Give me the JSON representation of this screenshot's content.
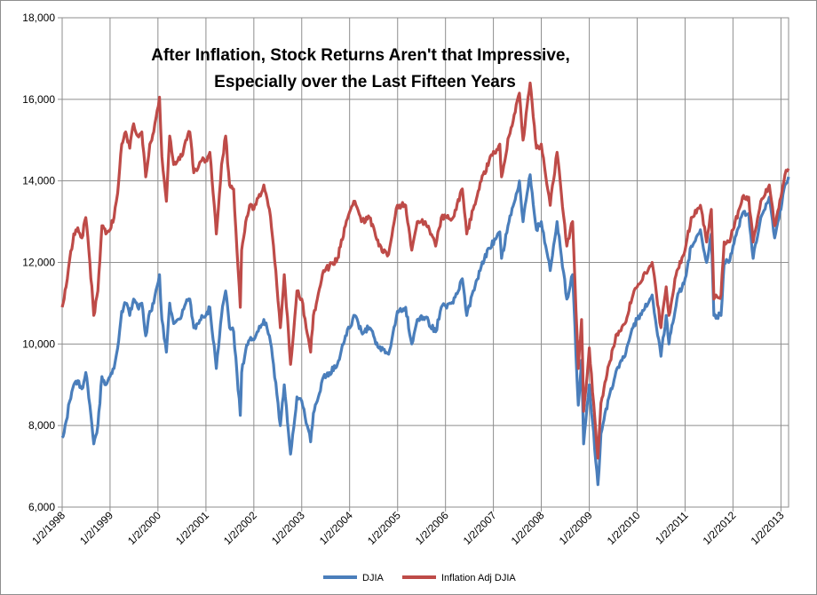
{
  "chart_data": {
    "type": "line",
    "title_lines": [
      "After Inflation, Stock Returns Aren't that Impressive,",
      "Especially over the Last Fifteen Years"
    ],
    "xlabel": "",
    "ylabel": "",
    "ylim": [
      6000,
      18000
    ],
    "y_ticks": [
      "6,000",
      "8,000",
      "10,000",
      "12,000",
      "14,000",
      "16,000",
      "18,000"
    ],
    "x_ticks": [
      "1/2/1998",
      "1/2/1999",
      "1/2/2000",
      "1/2/2001",
      "1/2/2002",
      "1/2/2003",
      "1/2/2004",
      "1/2/2005",
      "1/2/2006",
      "1/2/2007",
      "1/2/2008",
      "1/2/2009",
      "1/2/2010",
      "1/2/2011",
      "1/2/2012",
      "1/2/2013"
    ],
    "xlim": [
      "1/2/1998",
      "3/1/2013"
    ],
    "grid": true,
    "legend_position": "bottom",
    "series": [
      {
        "name": "DJIA",
        "color": "#4a7ebb",
        "x": [
          "1/2/1998",
          "2/1/1998",
          "3/1/1998",
          "4/1/1998",
          "5/1/1998",
          "6/1/1998",
          "7/1/1998",
          "8/1/1998",
          "8/31/1998",
          "10/1/1998",
          "11/1/1998",
          "12/1/1998",
          "1/2/1999",
          "2/1/1999",
          "3/1/1999",
          "4/1/1999",
          "5/1/1999",
          "6/1/1999",
          "7/1/1999",
          "8/1/1999",
          "9/1/1999",
          "10/1/1999",
          "11/1/1999",
          "12/1/1999",
          "1/14/2000",
          "2/1/2000",
          "3/7/2000",
          "4/1/2000",
          "5/1/2000",
          "6/1/2000",
          "7/1/2000",
          "8/1/2000",
          "9/1/2000",
          "10/1/2000",
          "11/1/2000",
          "12/1/2000",
          "1/2/2001",
          "2/1/2001",
          "3/22/2001",
          "5/1/2001",
          "6/1/2001",
          "7/1/2001",
          "8/1/2001",
          "9/21/2001",
          "10/1/2001",
          "11/1/2001",
          "12/1/2001",
          "1/2/2002",
          "3/19/2002",
          "5/1/2002",
          "6/1/2002",
          "7/23/2002",
          "8/22/2002",
          "10/9/2002",
          "11/27/2002",
          "1/2/2003",
          "3/11/2003",
          "4/1/2003",
          "5/1/2003",
          "6/17/2003",
          "8/1/2003",
          "10/1/2003",
          "12/1/2003",
          "2/11/2004",
          "4/1/2004",
          "6/1/2004",
          "8/12/2004",
          "10/25/2004",
          "12/31/2004",
          "3/4/2005",
          "4/20/2005",
          "6/1/2005",
          "8/1/2005",
          "10/19/2005",
          "12/1/2005",
          "3/1/2006",
          "5/10/2006",
          "6/13/2006",
          "8/1/2006",
          "10/1/2006",
          "12/1/2006",
          "2/20/2007",
          "3/5/2007",
          "5/1/2007",
          "7/19/2007",
          "8/16/2007",
          "10/9/2007",
          "11/26/2007",
          "1/2/2008",
          "3/10/2008",
          "5/1/2008",
          "7/15/2008",
          "8/28/2008",
          "10/10/2008",
          "11/4/2008",
          "11/20/2008",
          "1/2/2009",
          "3/9/2009",
          "4/1/2009",
          "6/1/2009",
          "8/1/2009",
          "10/1/2009",
          "12/1/2009",
          "1/2/2010",
          "4/26/2010",
          "7/2/2010",
          "8/11/2010",
          "9/1/2010",
          "11/1/2010",
          "1/2/2011",
          "2/18/2011",
          "4/29/2011",
          "6/15/2011",
          "7/21/2011",
          "8/10/2011",
          "10/3/2011",
          "10/27/2011",
          "12/1/2011",
          "1/2/2012",
          "3/15/2012",
          "5/1/2012",
          "6/4/2012",
          "8/1/2012",
          "10/5/2012",
          "11/15/2012",
          "1/2/2013",
          "2/1/2013",
          "3/1/2013"
        ],
        "values": [
          7700,
          8100,
          8600,
          9000,
          9100,
          8900,
          9300,
          8500,
          7550,
          8000,
          9200,
          9000,
          9200,
          9400,
          9900,
          10800,
          11000,
          10700,
          11100,
          10900,
          11000,
          10200,
          10800,
          11000,
          11700,
          10600,
          9800,
          11000,
          10500,
          10600,
          10700,
          11000,
          11100,
          10400,
          10500,
          10700,
          10700,
          10900,
          9400,
          10700,
          11300,
          10400,
          10300,
          8250,
          9300,
          9850,
          10100,
          10100,
          10600,
          10200,
          9500,
          8000,
          9000,
          7300,
          8700,
          8600,
          7600,
          8300,
          8600,
          9200,
          9300,
          9500,
          10200,
          10700,
          10300,
          10400,
          9900,
          9750,
          10800,
          10900,
          10000,
          10600,
          10650,
          10300,
          10900,
          11000,
          11600,
          10700,
          11300,
          11900,
          12350,
          12750,
          12100,
          13000,
          14000,
          13000,
          14150,
          12800,
          13000,
          11800,
          13000,
          11100,
          11700,
          8500,
          9600,
          7550,
          9000,
          6550,
          7800,
          8700,
          9400,
          9700,
          10400,
          10600,
          11200,
          9700,
          10700,
          10000,
          11100,
          11600,
          12400,
          12800,
          12000,
          12700,
          10700,
          10700,
          12000,
          12000,
          12400,
          13200,
          13200,
          12100,
          13100,
          13600,
          12600,
          13300,
          13900,
          14100
        ]
      },
      {
        "name": "Inflation Adj DJIA",
        "color": "#be4b48",
        "x": [
          "1/2/1998",
          "2/1/1998",
          "3/1/1998",
          "4/1/1998",
          "5/1/1998",
          "6/1/1998",
          "7/1/1998",
          "8/1/1998",
          "8/31/1998",
          "10/1/1998",
          "11/1/1998",
          "12/1/1998",
          "1/2/1999",
          "2/1/1999",
          "3/1/1999",
          "4/1/1999",
          "5/1/1999",
          "6/1/1999",
          "7/1/1999",
          "8/1/1999",
          "9/1/1999",
          "10/1/1999",
          "11/1/1999",
          "12/1/1999",
          "1/14/2000",
          "2/1/2000",
          "3/7/2000",
          "4/1/2000",
          "5/1/2000",
          "6/1/2000",
          "7/1/2000",
          "8/1/2000",
          "9/1/2000",
          "10/1/2000",
          "11/1/2000",
          "12/1/2000",
          "1/2/2001",
          "2/1/2001",
          "3/22/2001",
          "5/1/2001",
          "6/1/2001",
          "7/1/2001",
          "8/1/2001",
          "9/21/2001",
          "10/1/2001",
          "11/1/2001",
          "12/1/2001",
          "1/2/2002",
          "3/19/2002",
          "5/1/2002",
          "6/1/2002",
          "7/23/2002",
          "8/22/2002",
          "10/9/2002",
          "11/27/2002",
          "1/2/2003",
          "3/11/2003",
          "4/1/2003",
          "5/1/2003",
          "6/17/2003",
          "8/1/2003",
          "10/1/2003",
          "12/1/2003",
          "2/11/2004",
          "4/1/2004",
          "6/1/2004",
          "8/12/2004",
          "10/25/2004",
          "12/31/2004",
          "3/4/2005",
          "4/20/2005",
          "6/1/2005",
          "8/1/2005",
          "10/19/2005",
          "12/1/2005",
          "3/1/2006",
          "5/10/2006",
          "6/13/2006",
          "8/1/2006",
          "10/1/2006",
          "12/1/2006",
          "2/20/2007",
          "3/5/2007",
          "5/1/2007",
          "7/19/2007",
          "8/16/2007",
          "10/9/2007",
          "11/26/2007",
          "1/2/2008",
          "3/10/2008",
          "5/1/2008",
          "7/15/2008",
          "8/28/2008",
          "10/10/2008",
          "11/4/2008",
          "11/20/2008",
          "1/2/2009",
          "3/9/2009",
          "4/1/2009",
          "6/1/2009",
          "8/1/2009",
          "10/1/2009",
          "12/1/2009",
          "1/2/2010",
          "4/26/2010",
          "7/2/2010",
          "8/11/2010",
          "9/1/2010",
          "11/1/2010",
          "1/2/2011",
          "2/18/2011",
          "4/29/2011",
          "6/15/2011",
          "7/21/2011",
          "8/10/2011",
          "10/3/2011",
          "10/27/2011",
          "12/1/2011",
          "1/2/2012",
          "3/15/2012",
          "5/1/2012",
          "6/4/2012",
          "8/1/2012",
          "10/5/2012",
          "11/15/2012",
          "1/2/2013",
          "2/1/2013",
          "3/1/2013"
        ],
        "values": [
          10900,
          11400,
          12100,
          12700,
          12850,
          12600,
          13100,
          12000,
          10700,
          11300,
          12900,
          12700,
          12800,
          13100,
          13700,
          14900,
          15200,
          14800,
          15400,
          15100,
          15200,
          14100,
          14900,
          15200,
          16050,
          14600,
          13500,
          15100,
          14400,
          14500,
          14600,
          15000,
          15200,
          14200,
          14300,
          14500,
          14500,
          14700,
          12700,
          14400,
          15100,
          13900,
          13800,
          10900,
          12300,
          13000,
          13400,
          13300,
          13900,
          13300,
          12400,
          10400,
          11700,
          9500,
          11300,
          11100,
          9800,
          10700,
          11100,
          11800,
          11900,
          12100,
          12900,
          13500,
          13000,
          13100,
          12400,
          12200,
          13400,
          13400,
          12300,
          13000,
          13000,
          12400,
          13100,
          13100,
          13800,
          12700,
          13300,
          14000,
          14500,
          14900,
          14100,
          15100,
          16150,
          15000,
          16400,
          14800,
          14900,
          13400,
          14700,
          12400,
          13000,
          9400,
          10600,
          8350,
          9900,
          7200,
          8550,
          9500,
          10250,
          10500,
          11200,
          11400,
          12000,
          10400,
          11400,
          10700,
          11800,
          12300,
          13100,
          13400,
          12500,
          13300,
          11100,
          11200,
          12500,
          12500,
          12800,
          13600,
          13600,
          12500,
          13500,
          13900,
          12900,
          13600,
          14150,
          14300
        ]
      }
    ]
  }
}
